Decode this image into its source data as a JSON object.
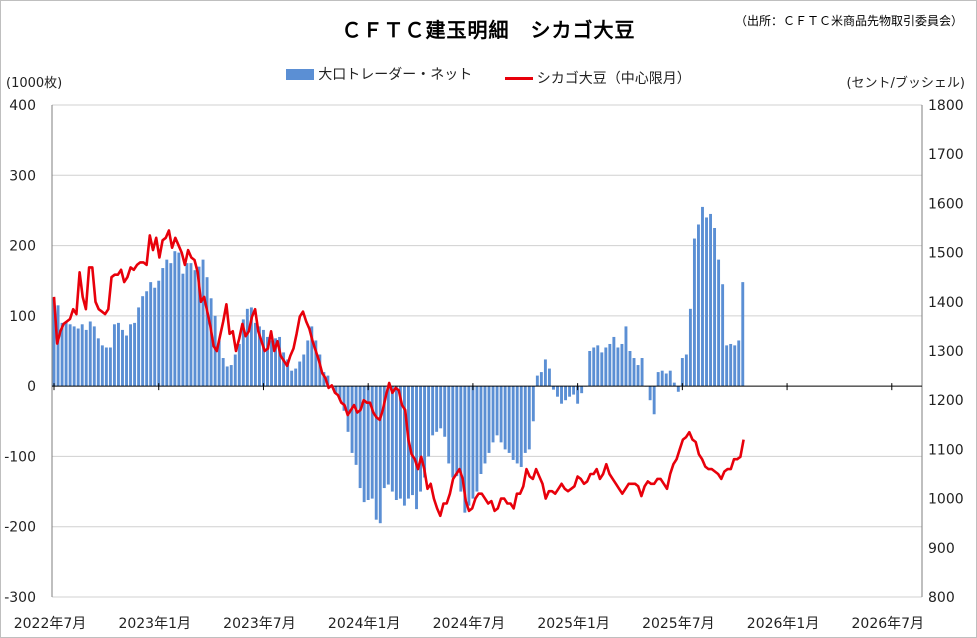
{
  "title": "ＣＦＴＣ建玉明細　シカゴ大豆",
  "source": "（出所：ＣＦＴＣ米商品先物取引委員会）",
  "colors": {
    "bars": "#5b8fd4",
    "line": "#e8000b",
    "grid": "#d0d0d0"
  },
  "chart_data": {
    "type": "bar+line",
    "left_axis_unit": "(1000枚)",
    "right_axis_unit": "(セント/ブッシェル)",
    "ylim_left": [
      -300,
      400
    ],
    "yticks_left": [
      "400",
      "300",
      "200",
      "100",
      "0",
      "-100",
      "-200",
      "-300"
    ],
    "ylim_right": [
      800,
      1800
    ],
    "yticks_right": [
      "1800",
      "1700",
      "1600",
      "1500",
      "1400",
      "1300",
      "1200",
      "1100",
      "1000",
      "900",
      "800"
    ],
    "x_labels": [
      "2022年7月",
      "2023年1月",
      "2023年7月",
      "2024年1月",
      "2024年7月",
      "2025年1月",
      "2025年7月",
      "2026年1月",
      "2026年7月"
    ],
    "x_range_weeks": [
      0,
      216
    ],
    "series": [
      {
        "name": "大口トレーダー・ネット",
        "kind": "bar",
        "values": [
          125,
          115,
          90,
          92,
          88,
          85,
          82,
          88,
          80,
          92,
          85,
          68,
          58,
          55,
          55,
          88,
          90,
          80,
          72,
          88,
          90,
          112,
          128,
          135,
          148,
          140,
          150,
          168,
          180,
          175,
          192,
          190,
          160,
          175,
          175,
          165,
          170,
          180,
          155,
          125,
          100,
          65,
          40,
          28,
          30,
          45,
          60,
          95,
          110,
          112,
          90,
          85,
          80,
          70,
          65,
          68,
          70,
          48,
          38,
          22,
          25,
          35,
          45,
          65,
          85,
          65,
          45,
          20,
          15,
          0,
          -10,
          -20,
          -35,
          -65,
          -95,
          -112,
          -145,
          -165,
          -162,
          -160,
          -190,
          -195,
          -145,
          -140,
          -150,
          -162,
          -160,
          -170,
          -160,
          -155,
          -175,
          -150,
          -130,
          -100,
          -70,
          -65,
          -60,
          -72,
          -110,
          -130,
          -128,
          -150,
          -180,
          -170,
          -160,
          -150,
          -125,
          -110,
          -95,
          -80,
          -70,
          -80,
          -90,
          -95,
          -105,
          -110,
          -115,
          -95,
          -90,
          -50,
          15,
          20,
          38,
          25,
          -5,
          -15,
          -25,
          -20,
          -15,
          -12,
          -25,
          -10,
          0,
          50,
          55,
          58,
          48,
          55,
          60,
          70,
          55,
          60,
          85,
          50,
          40,
          30,
          40,
          0,
          -20,
          -40,
          20,
          22,
          18,
          22,
          5,
          -8,
          40,
          45,
          110,
          210,
          230,
          255,
          240,
          245,
          225,
          180,
          145,
          58,
          60,
          58,
          65,
          148
        ]
      },
      {
        "name": "シカゴ大豆（中心限月）",
        "kind": "line",
        "values": [
          1410,
          1315,
          1340,
          1355,
          1360,
          1365,
          1385,
          1375,
          1460,
          1410,
          1385,
          1470,
          1470,
          1400,
          1385,
          1380,
          1375,
          1385,
          1450,
          1455,
          1455,
          1465,
          1440,
          1450,
          1470,
          1465,
          1475,
          1480,
          1480,
          1475,
          1535,
          1505,
          1530,
          1490,
          1525,
          1530,
          1545,
          1510,
          1530,
          1515,
          1500,
          1475,
          1505,
          1490,
          1485,
          1460,
          1400,
          1410,
          1380,
          1350,
          1310,
          1300,
          1330,
          1360,
          1395,
          1335,
          1340,
          1300,
          1325,
          1355,
          1330,
          1340,
          1370,
          1385,
          1340,
          1320,
          1300,
          1305,
          1340,
          1300,
          1320,
          1290,
          1280,
          1270,
          1290,
          1305,
          1335,
          1370,
          1380,
          1360,
          1345,
          1320,
          1300,
          1280,
          1255,
          1245,
          1225,
          1230,
          1215,
          1210,
          1195,
          1190,
          1170,
          1180,
          1190,
          1175,
          1180,
          1200,
          1195,
          1195,
          1175,
          1165,
          1160,
          1180,
          1210,
          1235,
          1215,
          1225,
          1220,
          1190,
          1180,
          1120,
          1090,
          1080,
          1060,
          1085,
          1060,
          1020,
          1030,
          1000,
          980,
          965,
          990,
          990,
          1010,
          1040,
          1050,
          1060,
          1040,
          995,
          975,
          980,
          1000,
          1010,
          1010,
          1000,
          990,
          995,
          975,
          980,
          1000,
          1000,
          990,
          990,
          980,
          1010,
          1010,
          1025,
          1060,
          1045,
          1040,
          1060,
          1045,
          1030,
          1000,
          1015,
          1015,
          1010,
          1020,
          1030,
          1020,
          1015,
          1020,
          1025,
          1045,
          1040,
          1030,
          1035,
          1050,
          1050,
          1060,
          1040,
          1050,
          1070,
          1050,
          1040,
          1030,
          1020,
          1010,
          1020,
          1030,
          1030,
          1030,
          1025,
          1005,
          1025,
          1035,
          1030,
          1030,
          1040,
          1040,
          1030,
          1020,
          1050,
          1070,
          1080,
          1100,
          1120,
          1125,
          1135,
          1120,
          1115,
          1090,
          1080,
          1065,
          1060,
          1060,
          1055,
          1050,
          1040,
          1055,
          1060,
          1060,
          1080,
          1080,
          1085,
          1120
        ]
      }
    ]
  }
}
